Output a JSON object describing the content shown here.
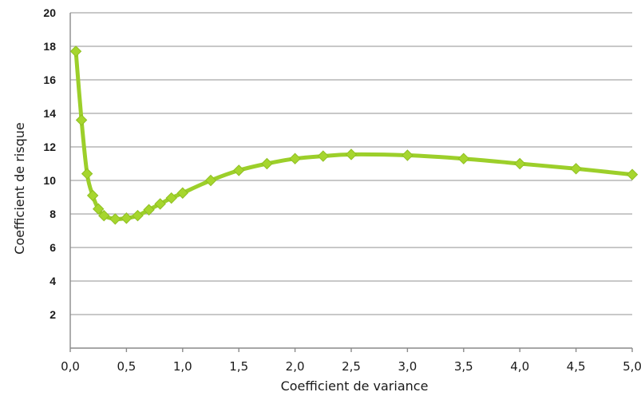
{
  "chart_data": {
    "type": "line",
    "title": "",
    "xlabel": "Coefficient de variance",
    "ylabel": "Coefficient de risque",
    "xlim": [
      0,
      5
    ],
    "ylim": [
      0,
      20
    ],
    "grid": true,
    "x_tick_labels": [
      "0,0",
      "0,5",
      "1,0",
      "1,5",
      "2,0",
      "2,5",
      "3,0",
      "3,5",
      "4,0",
      "4,5",
      "5,0"
    ],
    "y_tick_labels": [
      "2",
      "4",
      "6",
      "8",
      "10",
      "12",
      "14",
      "16",
      "18",
      "20"
    ],
    "line_color": "#9ccf2a",
    "marker_color": "#a6d62e",
    "series": [
      {
        "x": [
          0.05,
          0.1,
          0.15,
          0.2,
          0.25,
          0.3,
          0.4,
          0.5,
          0.6,
          0.7,
          0.8,
          0.9,
          1.0,
          1.25,
          1.5,
          1.75,
          2.0,
          2.25,
          2.5,
          3.0,
          3.5,
          4.0,
          4.5,
          5.0
        ],
        "values": [
          17.7,
          13.6,
          10.4,
          9.1,
          8.3,
          7.9,
          7.7,
          7.75,
          7.9,
          8.25,
          8.6,
          8.95,
          9.25,
          10.0,
          10.6,
          11.0,
          11.3,
          11.45,
          11.55,
          11.5,
          11.3,
          11.0,
          10.7,
          10.35
        ]
      }
    ]
  }
}
